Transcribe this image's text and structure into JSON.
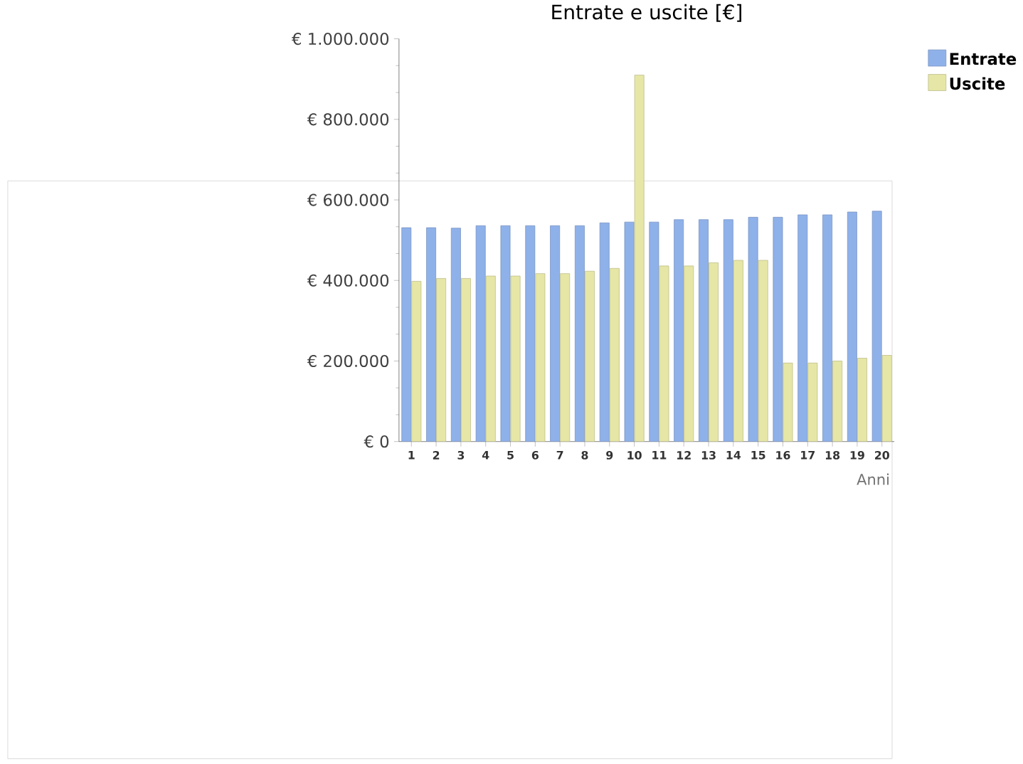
{
  "chart_data": {
    "type": "bar",
    "title": "Entrate e uscite [€]",
    "xlabel": "Anni",
    "categories": [
      "1",
      "2",
      "3",
      "4",
      "5",
      "6",
      "7",
      "8",
      "9",
      "10",
      "11",
      "12",
      "13",
      "14",
      "15",
      "16",
      "17",
      "18",
      "19",
      "20"
    ],
    "series": [
      {
        "name": "Entrate",
        "color": "#8fb1ea",
        "values": [
          531000,
          531000,
          530000,
          536000,
          536000,
          536000,
          536000,
          536000,
          543000,
          545000,
          545000,
          551000,
          551000,
          551000,
          557000,
          557000,
          563000,
          563000,
          570000,
          572000
        ]
      },
      {
        "name": "Uscite",
        "color": "#e6e6a6",
        "values": [
          398000,
          405000,
          405000,
          411000,
          411000,
          417000,
          417000,
          423000,
          430000,
          910000,
          436000,
          436000,
          444000,
          450000,
          450000,
          195000,
          195000,
          200000,
          207000,
          214000
        ]
      }
    ],
    "ylim": [
      0,
      1000000
    ],
    "yticks": [
      {
        "value": 0,
        "label": "€ 0"
      },
      {
        "value": 200000,
        "label": "€ 200.000"
      },
      {
        "value": 400000,
        "label": "€ 400.000"
      },
      {
        "value": 600000,
        "label": "€ 600.000"
      },
      {
        "value": 800000,
        "label": "€ 800.000"
      },
      {
        "value": 1000000,
        "label": "€ 1.000.000"
      }
    ],
    "legend": "top right"
  }
}
